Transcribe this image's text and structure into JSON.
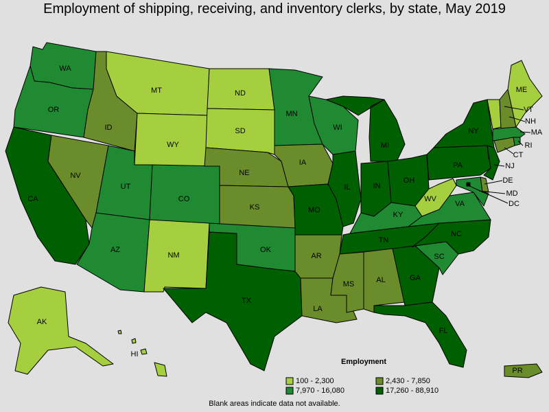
{
  "title": "Employment of shipping, receiving, and inventory clerks, by state, May 2019",
  "note": "Blank areas indicate data not available.",
  "legend": {
    "title": "Employment",
    "classes": [
      {
        "key": "c1",
        "label": "100 - 2,300",
        "color": "#a6cf3f"
      },
      {
        "key": "c2",
        "label": "2,430 - 7,850",
        "color": "#6b8c2a"
      },
      {
        "key": "c3",
        "label": "7,970 - 16,080",
        "color": "#1f8a32"
      },
      {
        "key": "c4",
        "label": "17,260 - 88,910",
        "color": "#005f00"
      }
    ]
  },
  "states": [
    {
      "code": "WA",
      "class": "c3"
    },
    {
      "code": "OR",
      "class": "c3"
    },
    {
      "code": "CA",
      "class": "c4"
    },
    {
      "code": "NV",
      "class": "c2"
    },
    {
      "code": "ID",
      "class": "c2"
    },
    {
      "code": "MT",
      "class": "c1"
    },
    {
      "code": "WY",
      "class": "c1"
    },
    {
      "code": "UT",
      "class": "c3"
    },
    {
      "code": "AZ",
      "class": "c3"
    },
    {
      "code": "CO",
      "class": "c3"
    },
    {
      "code": "NM",
      "class": "c1"
    },
    {
      "code": "ND",
      "class": "c1"
    },
    {
      "code": "SD",
      "class": "c1"
    },
    {
      "code": "NE",
      "class": "c2"
    },
    {
      "code": "KS",
      "class": "c2"
    },
    {
      "code": "OK",
      "class": "c3"
    },
    {
      "code": "TX",
      "class": "c4"
    },
    {
      "code": "MN",
      "class": "c3"
    },
    {
      "code": "IA",
      "class": "c2"
    },
    {
      "code": "MO",
      "class": "c4"
    },
    {
      "code": "AR",
      "class": "c2"
    },
    {
      "code": "LA",
      "class": "c2"
    },
    {
      "code": "WI",
      "class": "c3"
    },
    {
      "code": "IL",
      "class": "c4"
    },
    {
      "code": "MI",
      "class": "c4"
    },
    {
      "code": "IN",
      "class": "c4"
    },
    {
      "code": "OH",
      "class": "c4"
    },
    {
      "code": "KY",
      "class": "c3"
    },
    {
      "code": "TN",
      "class": "c4"
    },
    {
      "code": "MS",
      "class": "c2"
    },
    {
      "code": "AL",
      "class": "c2"
    },
    {
      "code": "GA",
      "class": "c4"
    },
    {
      "code": "FL",
      "class": "c4"
    },
    {
      "code": "SC",
      "class": "c3"
    },
    {
      "code": "NC",
      "class": "c4"
    },
    {
      "code": "VA",
      "class": "c3"
    },
    {
      "code": "WV",
      "class": "c1"
    },
    {
      "code": "PA",
      "class": "c4"
    },
    {
      "code": "NY",
      "class": "c4"
    },
    {
      "code": "VT",
      "class": "c1"
    },
    {
      "code": "NH",
      "class": "c2"
    },
    {
      "code": "ME",
      "class": "c1"
    },
    {
      "code": "MA",
      "class": "c3"
    },
    {
      "code": "RI",
      "class": "c3"
    },
    {
      "code": "CT",
      "class": "c2"
    },
    {
      "code": "NJ",
      "class": "c4"
    },
    {
      "code": "DE",
      "class": "c2"
    },
    {
      "code": "MD",
      "class": "c3"
    },
    {
      "code": "DC",
      "class": "c4"
    },
    {
      "code": "AK",
      "class": "c1"
    },
    {
      "code": "HI",
      "class": "c1"
    },
    {
      "code": "PR",
      "class": "c2"
    }
  ]
}
